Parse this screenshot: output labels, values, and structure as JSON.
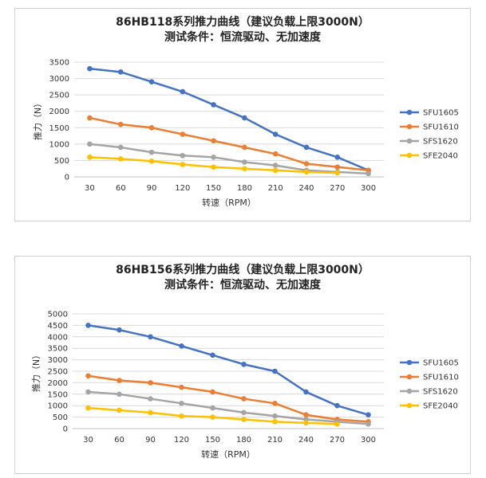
{
  "chart_data": [
    {
      "type": "line",
      "title": "86HB118系列推力曲线（建议负载上限3000N）",
      "subtitle": "测试条件：恒流驱动、无加速度",
      "xlabel": "转速（RPM）",
      "ylabel": "推力（N）",
      "ylim": [
        0,
        3500
      ],
      "yticks": [
        0,
        500,
        1000,
        1500,
        2000,
        2500,
        3000,
        3500
      ],
      "x": [
        "30",
        "60",
        "90",
        "120",
        "150",
        "180",
        "210",
        "240",
        "270",
        "300"
      ],
      "grid": true,
      "legend": "right",
      "series": [
        {
          "name": "SFU1605",
          "color": "#4472C4",
          "values": [
            3300,
            3200,
            2900,
            2600,
            2200,
            1800,
            1300,
            900,
            600,
            200
          ]
        },
        {
          "name": "SFU1610",
          "color": "#ED7D31",
          "values": [
            1800,
            1600,
            1500,
            1300,
            1100,
            900,
            700,
            400,
            300,
            200
          ]
        },
        {
          "name": "SFS1620",
          "color": "#A5A5A5",
          "values": [
            1000,
            900,
            750,
            650,
            600,
            450,
            350,
            200,
            150,
            100
          ]
        },
        {
          "name": "SFE2040",
          "color": "#FFC000",
          "values": [
            600,
            550,
            480,
            380,
            300,
            250,
            200,
            150,
            120,
            null
          ]
        }
      ]
    },
    {
      "type": "line",
      "title": "86HB156系列推力曲线（建议负载上限3000N）",
      "subtitle": "测试条件：恒流驱动、无加速度",
      "xlabel": "转速（RPM）",
      "ylabel": "推力（N）",
      "ylim": [
        0,
        5000
      ],
      "yticks": [
        0,
        500,
        1000,
        1500,
        2000,
        2500,
        3000,
        3500,
        4000,
        4500,
        5000
      ],
      "x": [
        "30",
        "60",
        "90",
        "120",
        "150",
        "180",
        "210",
        "240",
        "270",
        "300"
      ],
      "grid": true,
      "legend": "right",
      "series": [
        {
          "name": "SFU1605",
          "color": "#4472C4",
          "values": [
            4500,
            4300,
            4000,
            3600,
            3200,
            2800,
            2500,
            1600,
            1000,
            600
          ]
        },
        {
          "name": "SFU1610",
          "color": "#ED7D31",
          "values": [
            2300,
            2100,
            2000,
            1800,
            1600,
            1300,
            1100,
            600,
            400,
            300
          ]
        },
        {
          "name": "SFS1620",
          "color": "#A5A5A5",
          "values": [
            1600,
            1500,
            1300,
            1100,
            900,
            700,
            550,
            400,
            300,
            200
          ]
        },
        {
          "name": "SFE2040",
          "color": "#FFC000",
          "values": [
            900,
            800,
            700,
            550,
            500,
            400,
            300,
            250,
            200,
            null
          ]
        }
      ]
    }
  ]
}
